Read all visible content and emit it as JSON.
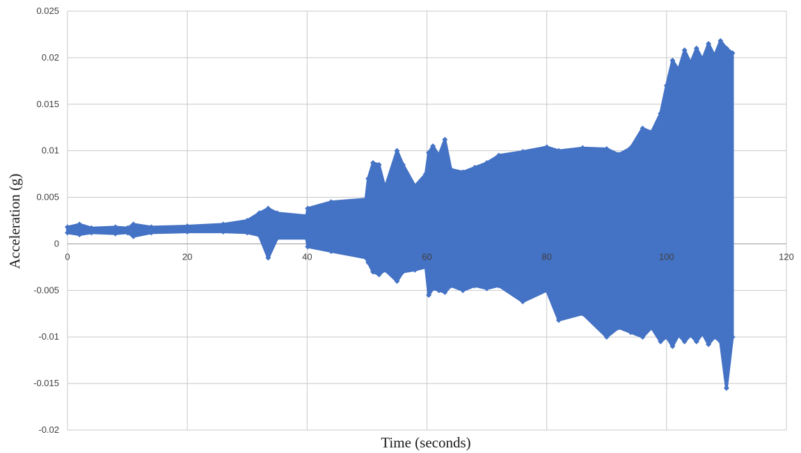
{
  "chart_data": {
    "type": "scatter",
    "title": "",
    "xlabel": "Time (seconds)",
    "ylabel": "Acceleration (g)",
    "xlim": [
      0,
      120
    ],
    "ylim": [
      -0.02,
      0.025
    ],
    "x_ticks": [
      0,
      20,
      40,
      60,
      80,
      100,
      120
    ],
    "x_tick_labels": [
      "0",
      "20",
      "40",
      "60",
      "80",
      "100",
      "120"
    ],
    "y_ticks": [
      0.025,
      0.02,
      0.015,
      0.01,
      0.005,
      0,
      -0.005,
      -0.01,
      -0.015,
      -0.02
    ],
    "y_tick_labels": [
      "0.025",
      "0.02",
      "0.015",
      "0.01",
      "0.005",
      "0",
      "-0.005",
      "-0.01",
      "-0.015",
      "-0.02"
    ],
    "grid": true,
    "legend": "none",
    "series_color": "#4472C4",
    "series": [
      {
        "marker": "diamond",
        "note_envelope": "dense oscillating trace; values below are upper and lower envelope of the plotted points",
        "x": [
          0,
          2,
          4,
          8,
          10,
          11,
          14,
          20,
          26,
          30,
          32,
          33.5,
          35,
          39.9,
          40.1,
          44,
          49.8,
          50.2,
          51,
          52,
          53,
          55,
          56,
          58,
          59.8,
          60.3,
          61,
          62,
          63,
          64,
          66,
          68,
          70,
          72,
          76,
          80,
          82,
          86,
          90,
          92,
          94,
          96,
          97.5,
          99,
          100,
          101,
          102,
          103,
          104,
          105,
          106,
          107,
          108,
          109,
          110,
          111
        ],
        "upper": [
          0.0018,
          0.0021,
          0.0017,
          0.0018,
          0.0017,
          0.0021,
          0.0018,
          0.0019,
          0.0021,
          0.0025,
          0.0033,
          0.0038,
          0.0033,
          0.003,
          0.0038,
          0.0045,
          0.0048,
          0.007,
          0.0087,
          0.0085,
          0.006,
          0.01,
          0.0085,
          0.0062,
          0.0075,
          0.0098,
          0.0105,
          0.0095,
          0.0112,
          0.008,
          0.0077,
          0.0082,
          0.0087,
          0.0095,
          0.0099,
          0.0104,
          0.01,
          0.0103,
          0.0102,
          0.0096,
          0.0103,
          0.0124,
          0.012,
          0.014,
          0.017,
          0.0197,
          0.0187,
          0.0208,
          0.0194,
          0.021,
          0.0198,
          0.0215,
          0.0202,
          0.0218,
          0.021,
          0.0205
        ],
        "lower": [
          0.0012,
          0.001,
          0.0012,
          0.0011,
          0.0012,
          0.0008,
          0.0012,
          0.0013,
          0.0013,
          0.0012,
          0.0009,
          -0.0015,
          0.0006,
          0.0006,
          -0.0003,
          -0.0008,
          -0.0015,
          -0.002,
          -0.003,
          -0.0033,
          -0.0028,
          -0.004,
          -0.003,
          -0.0028,
          -0.0025,
          -0.0055,
          -0.0048,
          -0.005,
          -0.0052,
          -0.0045,
          -0.005,
          -0.0045,
          -0.0048,
          -0.0045,
          -0.0062,
          -0.005,
          -0.0082,
          -0.0075,
          -0.01,
          -0.009,
          -0.0095,
          -0.01,
          -0.009,
          -0.0105,
          -0.01,
          -0.011,
          -0.0098,
          -0.0105,
          -0.0098,
          -0.0105,
          -0.0096,
          -0.0108,
          -0.01,
          -0.0105,
          -0.0155,
          -0.01
        ]
      }
    ]
  }
}
